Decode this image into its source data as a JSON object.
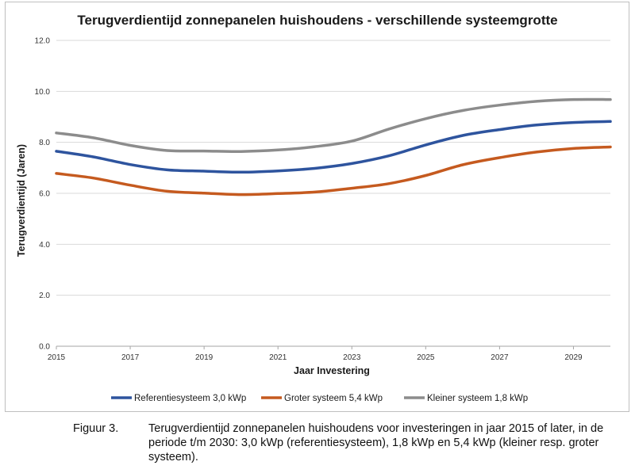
{
  "chart_data": {
    "type": "line",
    "title": "Terugverdientijd zonnepanelen huishoudens - verschillende systeemgrotte",
    "xlabel": "Jaar Investering",
    "ylabel": "Terugverdientijd (Jaren)",
    "x": [
      2015,
      2016,
      2017,
      2018,
      2019,
      2020,
      2021,
      2022,
      2023,
      2024,
      2025,
      2026,
      2027,
      2028,
      2029,
      2030
    ],
    "xticks": [
      "2015",
      "2017",
      "2019",
      "2021",
      "2023",
      "2025",
      "2027",
      "2029"
    ],
    "xlim": [
      2015,
      2030
    ],
    "yticks": [
      "0.0",
      "2.0",
      "4.0",
      "6.0",
      "8.0",
      "10.0",
      "12.0"
    ],
    "ylim": [
      0,
      12
    ],
    "grid": "horizontal",
    "legend_position": "bottom",
    "series": [
      {
        "name": "Referentiesysteem 3,0 kWp",
        "color": "#2e549e",
        "values": [
          7.65,
          7.43,
          7.13,
          6.92,
          6.87,
          6.83,
          6.88,
          6.98,
          7.17,
          7.47,
          7.9,
          8.27,
          8.5,
          8.68,
          8.78,
          8.82
        ]
      },
      {
        "name": "Groter systeem 5,4 kWp",
        "color": "#c55a1f",
        "values": [
          6.78,
          6.6,
          6.32,
          6.08,
          6.01,
          5.95,
          5.99,
          6.05,
          6.2,
          6.38,
          6.7,
          7.12,
          7.4,
          7.62,
          7.76,
          7.82
        ]
      },
      {
        "name": "Kleiner systeem 1,8 kWp",
        "color": "#8c8c8c",
        "values": [
          8.37,
          8.18,
          7.88,
          7.68,
          7.66,
          7.64,
          7.7,
          7.83,
          8.05,
          8.52,
          8.93,
          9.25,
          9.46,
          9.61,
          9.68,
          9.68
        ]
      }
    ]
  },
  "caption": {
    "label": "Figuur 3.",
    "text": "Terugverdientijd zonnepanelen huishoudens voor investeringen in jaar 2015 of later, in de periode t/m 2030: 3,0 kWp (referentiesysteem), 1,8 kWp en 5,4 kWp (kleiner resp. groter systeem)."
  }
}
